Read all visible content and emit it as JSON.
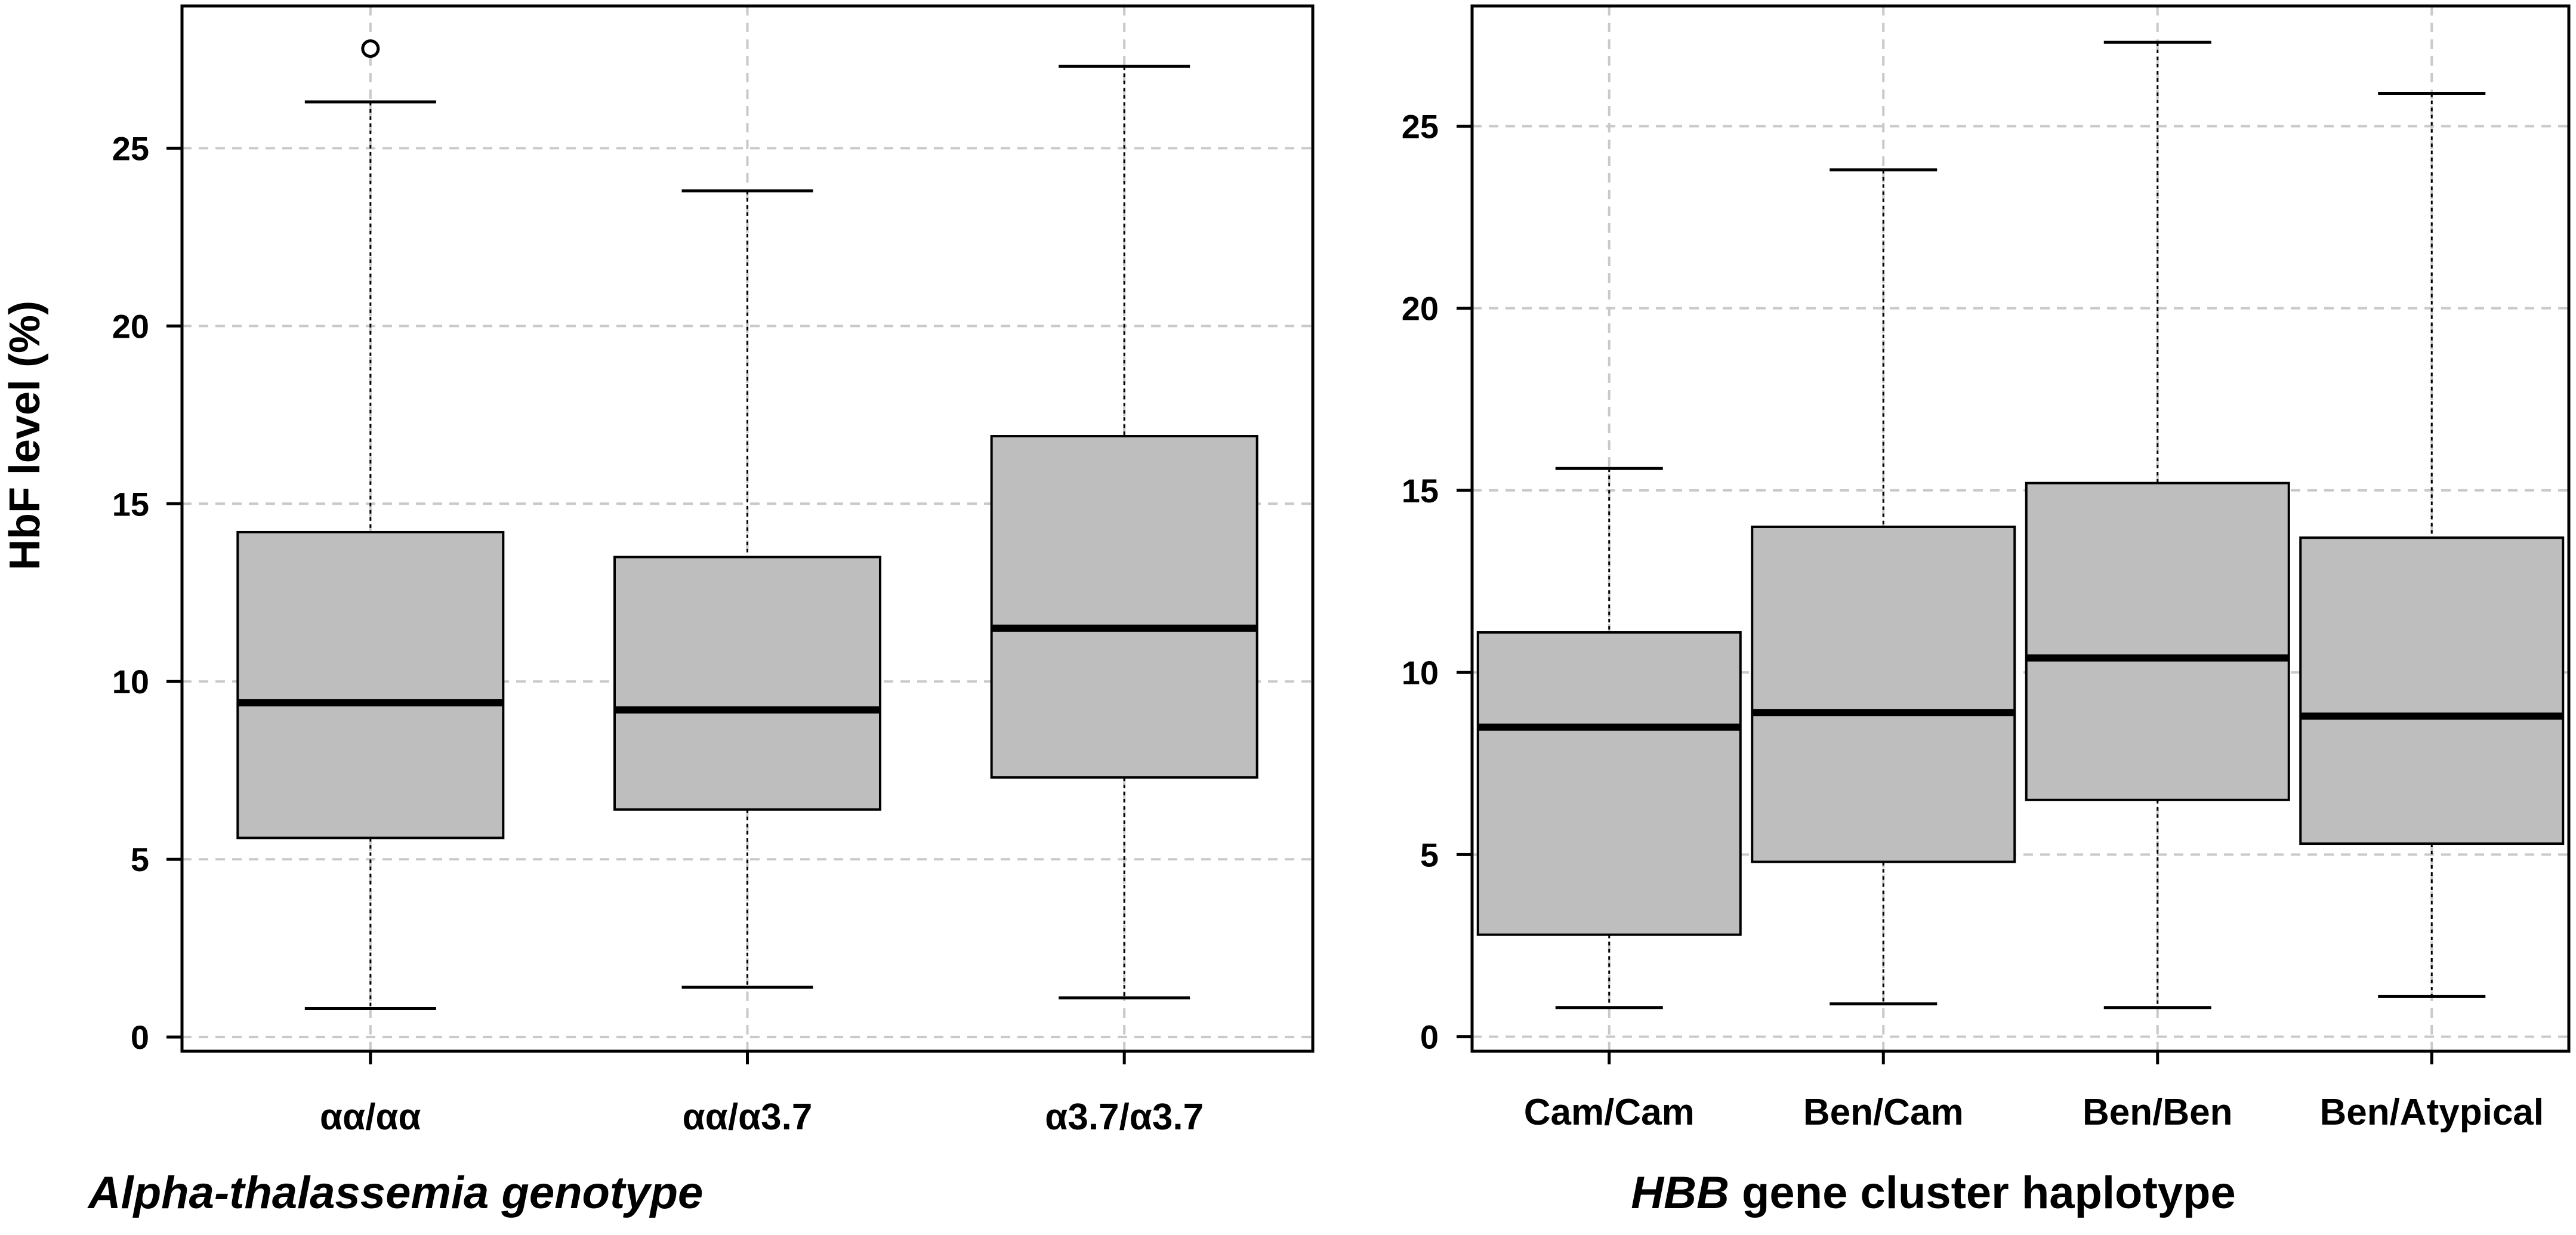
{
  "chart_data": [
    {
      "type": "box",
      "ylabel": "HbF level (%)",
      "xlabel": "Alpha-thalassemia genotype",
      "ylim": [
        -0.4,
        29
      ],
      "yticks": [
        0,
        5,
        10,
        15,
        20,
        25
      ],
      "grid": true,
      "categories": [
        "αα/αα",
        "αα/α3.7",
        "α3.7/α3.7"
      ],
      "boxes": [
        {
          "name": "αα/αα",
          "whisker_low": 0.8,
          "q1": 5.6,
          "median": 9.4,
          "q3": 14.2,
          "whisker_high": 26.3,
          "outliers": [
            27.8
          ]
        },
        {
          "name": "αα/α3.7",
          "whisker_low": 1.4,
          "q1": 6.4,
          "median": 9.2,
          "q3": 13.5,
          "whisker_high": 23.8,
          "outliers": []
        },
        {
          "name": "α3.7/α3.7",
          "whisker_low": 1.1,
          "q1": 7.3,
          "median": 11.5,
          "q3": 16.9,
          "whisker_high": 27.3,
          "outliers": []
        }
      ]
    },
    {
      "type": "box",
      "xlabel_prefix": "HBB",
      "xlabel_suffix": " gene cluster haplotype",
      "ylim": [
        -0.4,
        28.3
      ],
      "yticks": [
        0,
        5,
        10,
        15,
        20,
        25
      ],
      "grid": true,
      "categories": [
        "Cam/Cam",
        "Ben/Cam",
        "Ben/Ben",
        "Ben/Atypical"
      ],
      "boxes": [
        {
          "name": "Cam/Cam",
          "whisker_low": 0.8,
          "q1": 2.8,
          "median": 8.5,
          "q3": 11.1,
          "whisker_high": 15.6,
          "outliers": []
        },
        {
          "name": "Ben/Cam",
          "whisker_low": 0.9,
          "q1": 4.8,
          "median": 8.9,
          "q3": 14.0,
          "whisker_high": 23.8,
          "outliers": []
        },
        {
          "name": "Ben/Ben",
          "whisker_low": 0.8,
          "q1": 6.5,
          "median": 10.4,
          "q3": 15.2,
          "whisker_high": 27.3,
          "outliers": []
        },
        {
          "name": "Ben/Atypical",
          "whisker_low": 1.1,
          "q1": 5.3,
          "median": 8.8,
          "q3": 13.7,
          "whisker_high": 25.9,
          "outliers": []
        }
      ]
    }
  ]
}
